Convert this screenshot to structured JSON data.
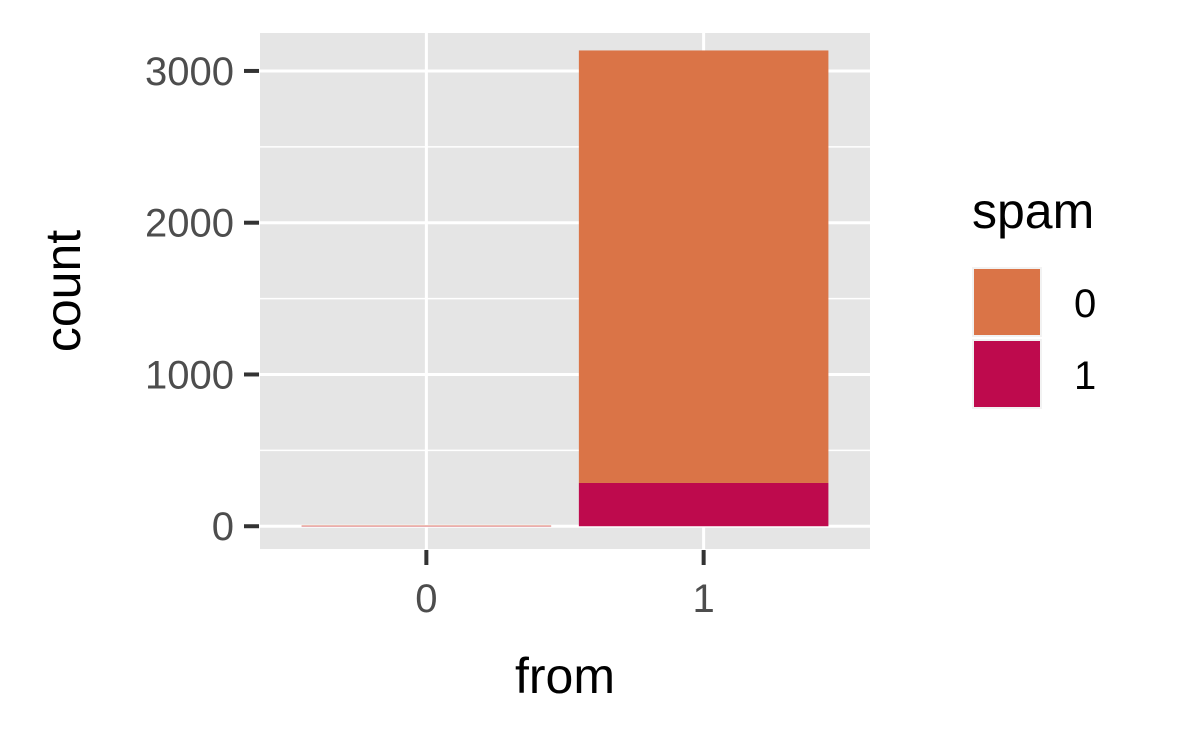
{
  "chart_data": {
    "type": "bar",
    "stacked": true,
    "categories": [
      "0",
      "1"
    ],
    "series": [
      {
        "name": "0",
        "values": [
          1,
          2850
        ],
        "color": "#DA7447"
      },
      {
        "name": "1",
        "values": [
          3,
          285
        ],
        "color": "#BE0A4D"
      }
    ],
    "xlabel": "from",
    "ylabel": "count",
    "ylim": [
      -150,
      3250
    ],
    "yticks": [
      0,
      1000,
      2000,
      3000
    ],
    "yticks_labels": [
      "0",
      "1000",
      "2000",
      "3000"
    ],
    "legend": {
      "title": "spam",
      "position": "right"
    },
    "grid": true,
    "panel_background": "#E5E5E5"
  }
}
